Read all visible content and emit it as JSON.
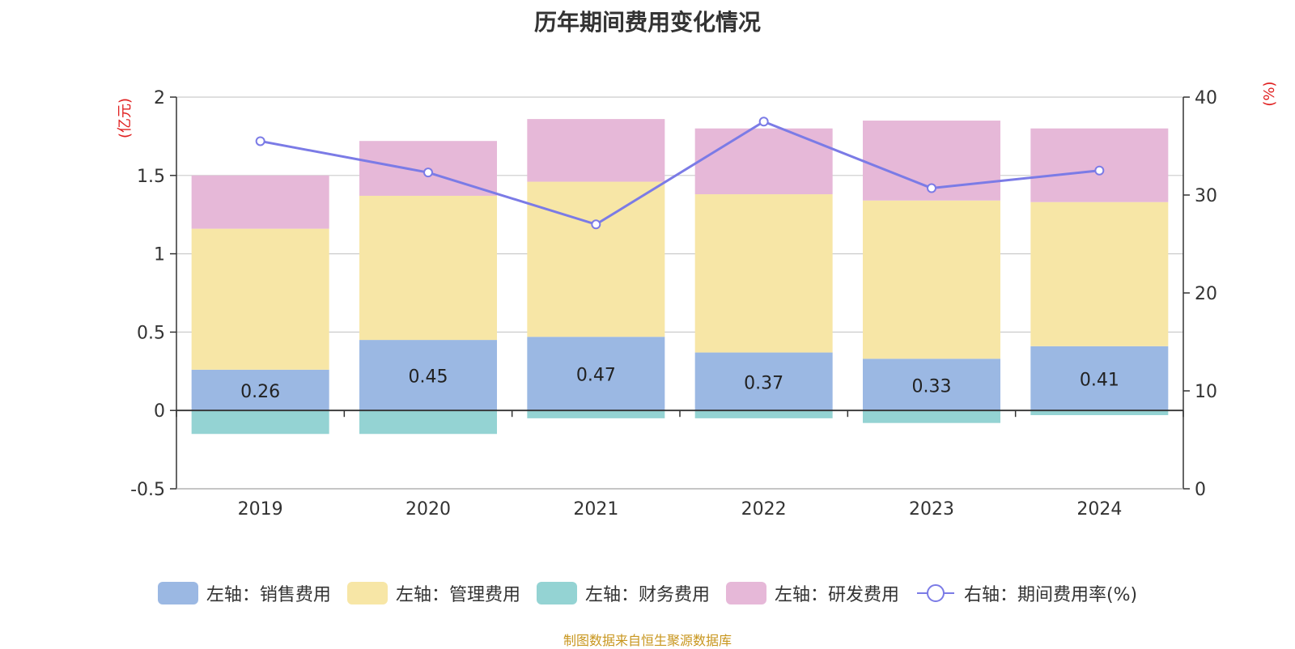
{
  "title": "历年期间费用变化情况",
  "source": "制图数据来自恒生聚源数据库",
  "chart_data": {
    "type": "bar",
    "stacked": true,
    "categories": [
      "2019",
      "2020",
      "2021",
      "2022",
      "2023",
      "2024"
    ],
    "left_axis": {
      "unit_label": "(亿元)",
      "ylim": [
        -0.5,
        2
      ],
      "ticks": [
        "-0.5",
        "0",
        "0.5",
        "1",
        "1.5",
        "2"
      ]
    },
    "right_axis": {
      "unit_label": "(%)",
      "ylim": [
        0,
        40
      ],
      "ticks": [
        "0",
        "10",
        "20",
        "30",
        "40"
      ]
    },
    "series": [
      {
        "name": "左轴：销售费用",
        "axis": "left",
        "type": "bar",
        "color": "#9bb8e3",
        "values": [
          0.26,
          0.45,
          0.47,
          0.37,
          0.33,
          0.41
        ],
        "data_labels": [
          "0.26",
          "0.45",
          "0.47",
          "0.37",
          "0.33",
          "0.41"
        ]
      },
      {
        "name": "左轴：管理费用",
        "axis": "left",
        "type": "bar",
        "color": "#f7e6a6",
        "values": [
          0.9,
          0.92,
          0.99,
          1.01,
          1.01,
          0.92
        ]
      },
      {
        "name": "左轴：财务费用",
        "axis": "left",
        "type": "bar",
        "color": "#94d3d3",
        "values": [
          -0.15,
          -0.15,
          -0.05,
          -0.05,
          -0.08,
          -0.03
        ]
      },
      {
        "name": "左轴：研发费用",
        "axis": "left",
        "type": "bar",
        "color": "#e6b8d8",
        "values": [
          0.34,
          0.35,
          0.4,
          0.42,
          0.51,
          0.47
        ]
      },
      {
        "name": "右轴：期间费用率(%)",
        "axis": "right",
        "type": "line",
        "color": "#7b7be6",
        "values": [
          35.5,
          32.3,
          27.0,
          37.5,
          30.7,
          32.5
        ]
      }
    ],
    "grid": true,
    "legend_position": "bottom"
  }
}
